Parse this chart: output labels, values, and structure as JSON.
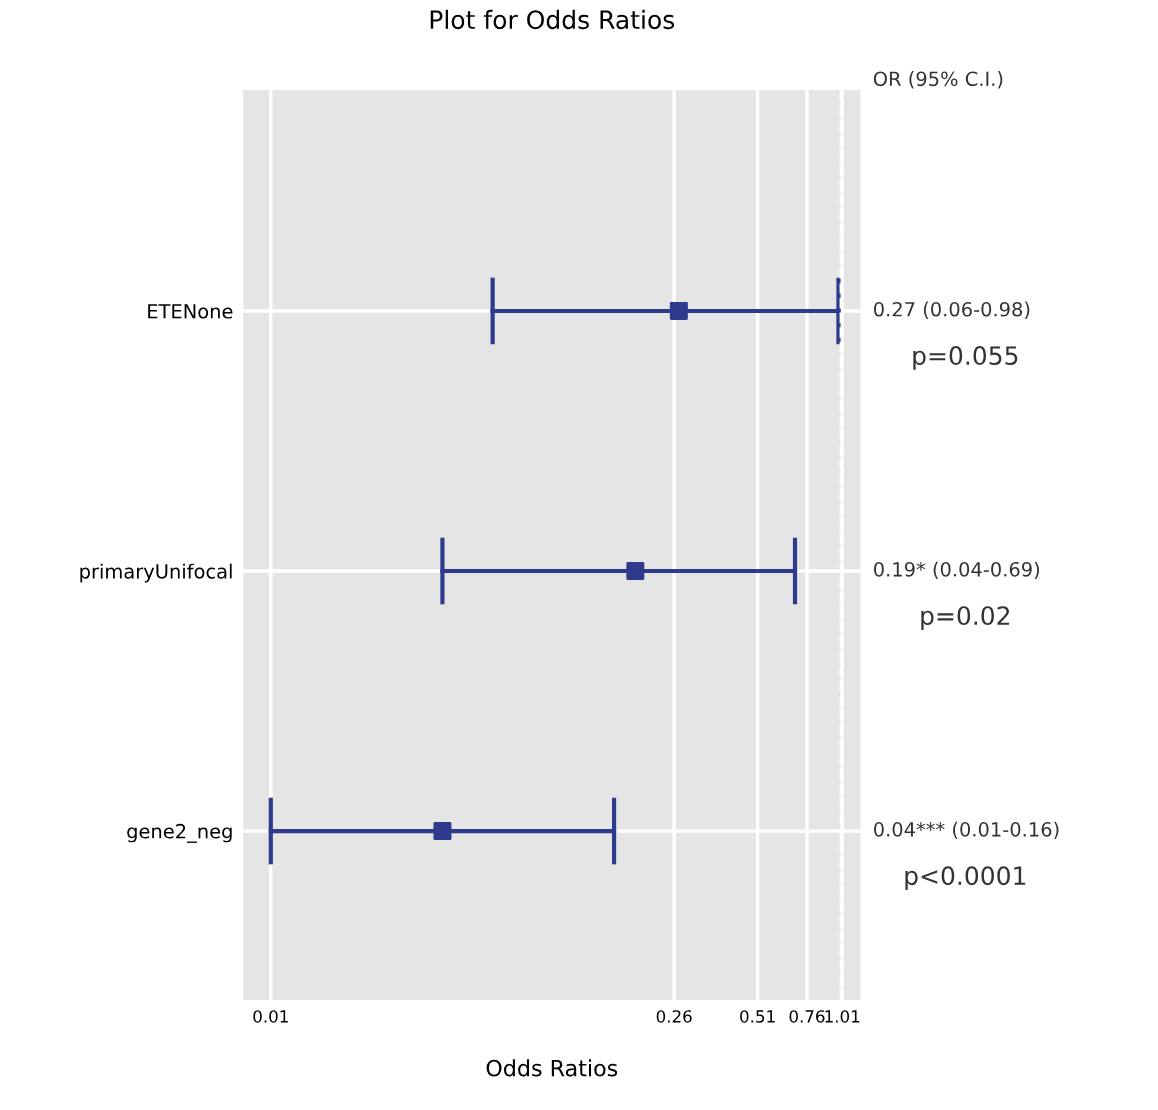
{
  "chart_data": {
    "type": "scatter",
    "orientation": "horizontal",
    "title": "Plot for Odds Ratios",
    "xlabel": "Odds Ratios",
    "categories": [
      "ETENone",
      "primaryUnifocal",
      "gene2_neg"
    ],
    "series": [
      {
        "color": "#2e3a8c",
        "values": [
          0.27,
          0.19,
          0.04
        ],
        "errors": [
          [
            0.06,
            0.98
          ],
          [
            0.04,
            0.69
          ],
          [
            0.01,
            0.16
          ]
        ]
      }
    ],
    "log": "x",
    "xlim": [
      0.008,
      1.17
    ],
    "xticks": [
      0.01,
      0.26,
      0.51,
      0.76,
      1.01
    ],
    "grid": true,
    "marker": "square",
    "ref_lines": [
      {
        "axis": "x",
        "value": 1,
        "line_style": "dashed",
        "color": "#ffffff"
      }
    ],
    "annotations": [
      "OR (95% C.I.)",
      "0.27 (0.06-0.98)",
      "p=0.055",
      "0.19* (0.04-0.69)",
      "p=0.02",
      "0.04*** (0.01-0.16)",
      "p<0.0001"
    ]
  }
}
